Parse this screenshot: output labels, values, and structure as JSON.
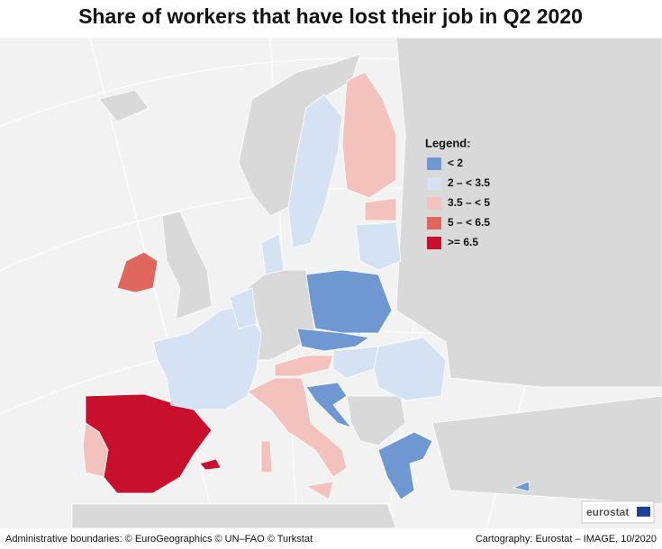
{
  "title": "Share of workers that have lost their job in Q2 2020",
  "legend": {
    "title": "Legend:",
    "items": [
      {
        "label": "< 2",
        "color": "#6f98d3"
      },
      {
        "label": "2 – < 3.5",
        "color": "#d4e2f4"
      },
      {
        "label": "3.5 – < 5",
        "color": "#f3c2bd"
      },
      {
        "label": "5 – < 6.5",
        "color": "#e1675e"
      },
      {
        "label": ">= 6.5",
        "color": "#c8102e"
      }
    ]
  },
  "footer": {
    "left": "Administrative boundaries: © EuroGeographics © UN–FAO © Turkstat",
    "right": "Cartography: Eurostat – IMAGE, 10/2020"
  },
  "logo": "eurostat"
}
